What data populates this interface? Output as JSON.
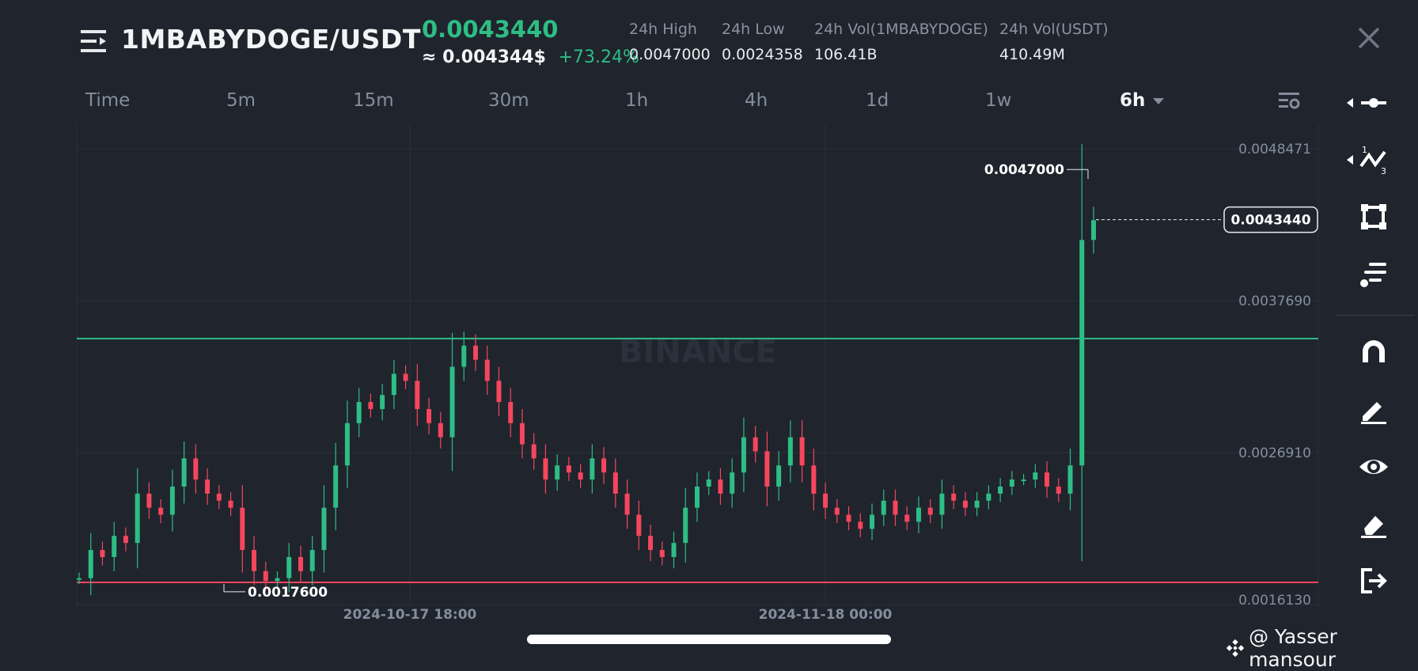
{
  "header": {
    "pair": "1MBABYDOGE/USDT",
    "last_price": "0.0043440",
    "approx_usd": "≈ 0.004344$",
    "change_pct": "+73.24%",
    "stats": [
      {
        "label": "24h High",
        "value": "0.0047000"
      },
      {
        "label": "24h Low",
        "value": "0.0024358"
      },
      {
        "label": "24h Vol(1MBABYDOGE)",
        "value": "106.41B"
      },
      {
        "label": "24h Vol(USDT)",
        "value": "410.49M"
      }
    ]
  },
  "tabs": [
    "Time",
    "5m",
    "15m",
    "30m",
    "1h",
    "4h",
    "1d",
    "1w",
    "6h"
  ],
  "active_tab": "6h",
  "chart_data": {
    "type": "candlestick",
    "y_axis_labels": [
      "0.0048471",
      "0.0037690",
      "0.0026910",
      "0.0016130"
    ],
    "ylim": [
      0.001613,
      0.0048471
    ],
    "x_axis_labels": [
      "2024-10-17 18:00",
      "2024-11-18 00:00"
    ],
    "high_marker": "0.0047000",
    "low_marker": "0.0017600",
    "current_price_tag": "0.0043440",
    "resistance_line": 0.0035,
    "support_line": 0.00177,
    "watermark": "BINANCE",
    "series": [
      {
        "values": [
          0.0018,
          0.002,
          0.00195,
          0.0021,
          0.00205,
          0.0024,
          0.0023,
          0.00225,
          0.00245,
          0.00265,
          0.0025,
          0.0024,
          0.00235,
          0.0023,
          0.002,
          0.00185,
          0.00178,
          0.0018,
          0.00195,
          0.00185,
          0.002,
          0.0023,
          0.0026,
          0.0029,
          0.00305,
          0.003,
          0.0031,
          0.00325,
          0.0032,
          0.003,
          0.0029,
          0.0028,
          0.0033,
          0.00345,
          0.00335,
          0.0032,
          0.00305,
          0.0029,
          0.00275,
          0.00265,
          0.0025,
          0.0026,
          0.00255,
          0.0025,
          0.00265,
          0.00255,
          0.0024,
          0.00225,
          0.0021,
          0.002,
          0.00195,
          0.00205,
          0.0023,
          0.00245,
          0.0025,
          0.0024,
          0.00255,
          0.0028,
          0.0027,
          0.00245,
          0.0026,
          0.0028,
          0.0026,
          0.0024,
          0.0023,
          0.00225,
          0.0022,
          0.00215,
          0.00225,
          0.00235,
          0.00225,
          0.0022,
          0.0023,
          0.00225,
          0.0024,
          0.00235,
          0.0023,
          0.00235,
          0.0024,
          0.00245,
          0.0025,
          0.0025,
          0.00255,
          0.00245,
          0.0024,
          0.0026,
          0.0042,
          0.00434
        ]
      }
    ]
  },
  "toolbar": {
    "icons": [
      "horizontal-line-icon",
      "trend-lines-icon",
      "shape-icon",
      "fib-icon",
      "magnet-icon",
      "pencil-icon",
      "eye-icon",
      "eraser-icon",
      "exit-icon"
    ]
  },
  "footer": {
    "credit": "@ Yasser mansour"
  },
  "colors": {
    "up": "#2ebd85",
    "down": "#f6465d",
    "background": "#1f242d",
    "text": "#eaecef",
    "muted": "#848e9c"
  }
}
